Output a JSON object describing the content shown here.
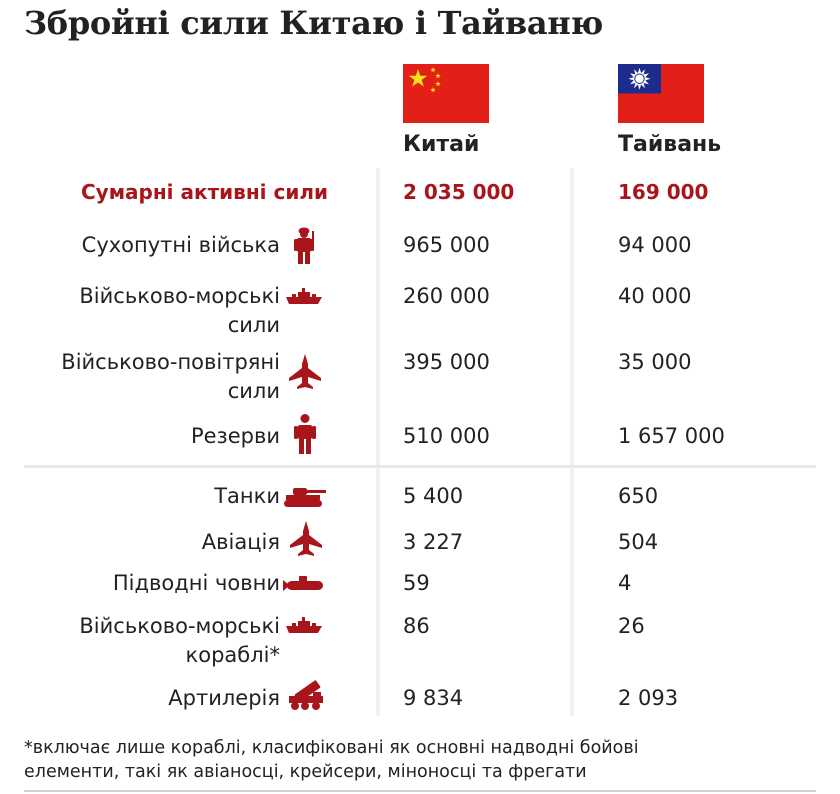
{
  "title": "Збройні сили Китаю і Тайваню",
  "colors": {
    "accent": "#a8161b",
    "text": "#222222",
    "flag_red": "#e32018",
    "flag_blue": "#1c2b8c",
    "flag_yellow": "#f6e11a"
  },
  "columns": {
    "china": "Китай",
    "taiwan": "Тайвань"
  },
  "chart_data": {
    "type": "table",
    "title": "Збройні сили Китаю і Тайваню",
    "columns": [
      "Китай",
      "Тайвань"
    ],
    "rows": [
      {
        "label": "Сумарні активні сили",
        "icon": "",
        "china": "2 035 000",
        "taiwan": "169 000"
      },
      {
        "label": "Сухопутні війська",
        "icon": "soldier-icon",
        "china": "965 000",
        "taiwan": "94 000"
      },
      {
        "label": "Військово-морські\nсили",
        "icon": "warship-icon",
        "china": "260 000",
        "taiwan": "40 000"
      },
      {
        "label": "Військово-повітряні\nсили",
        "icon": "fighter-jet-icon",
        "china": "395 000",
        "taiwan": "35 000"
      },
      {
        "label": "Резерви",
        "icon": "person-icon",
        "china": "510 000",
        "taiwan": "1 657 000"
      },
      {
        "label": "Танки",
        "icon": "tank-icon",
        "china": "5 400",
        "taiwan": "650"
      },
      {
        "label": "Авіація",
        "icon": "fighter-jet-icon",
        "china": "3 227",
        "taiwan": "504"
      },
      {
        "label": "Підводні човни",
        "icon": "submarine-icon",
        "china": "59",
        "taiwan": "4"
      },
      {
        "label": "Військово-морські\nкораблі*",
        "icon": "warship-icon",
        "china": "86",
        "taiwan": "26"
      },
      {
        "label": "Артилерія",
        "icon": "rocket-launcher-icon",
        "china": "9 834",
        "taiwan": "2 093"
      }
    ]
  },
  "footnote": "*включає лише кораблі, класифіковані як основні надводні бойові\nелементи, такі як авіаносці, крейсери, міноносці та фрегати"
}
